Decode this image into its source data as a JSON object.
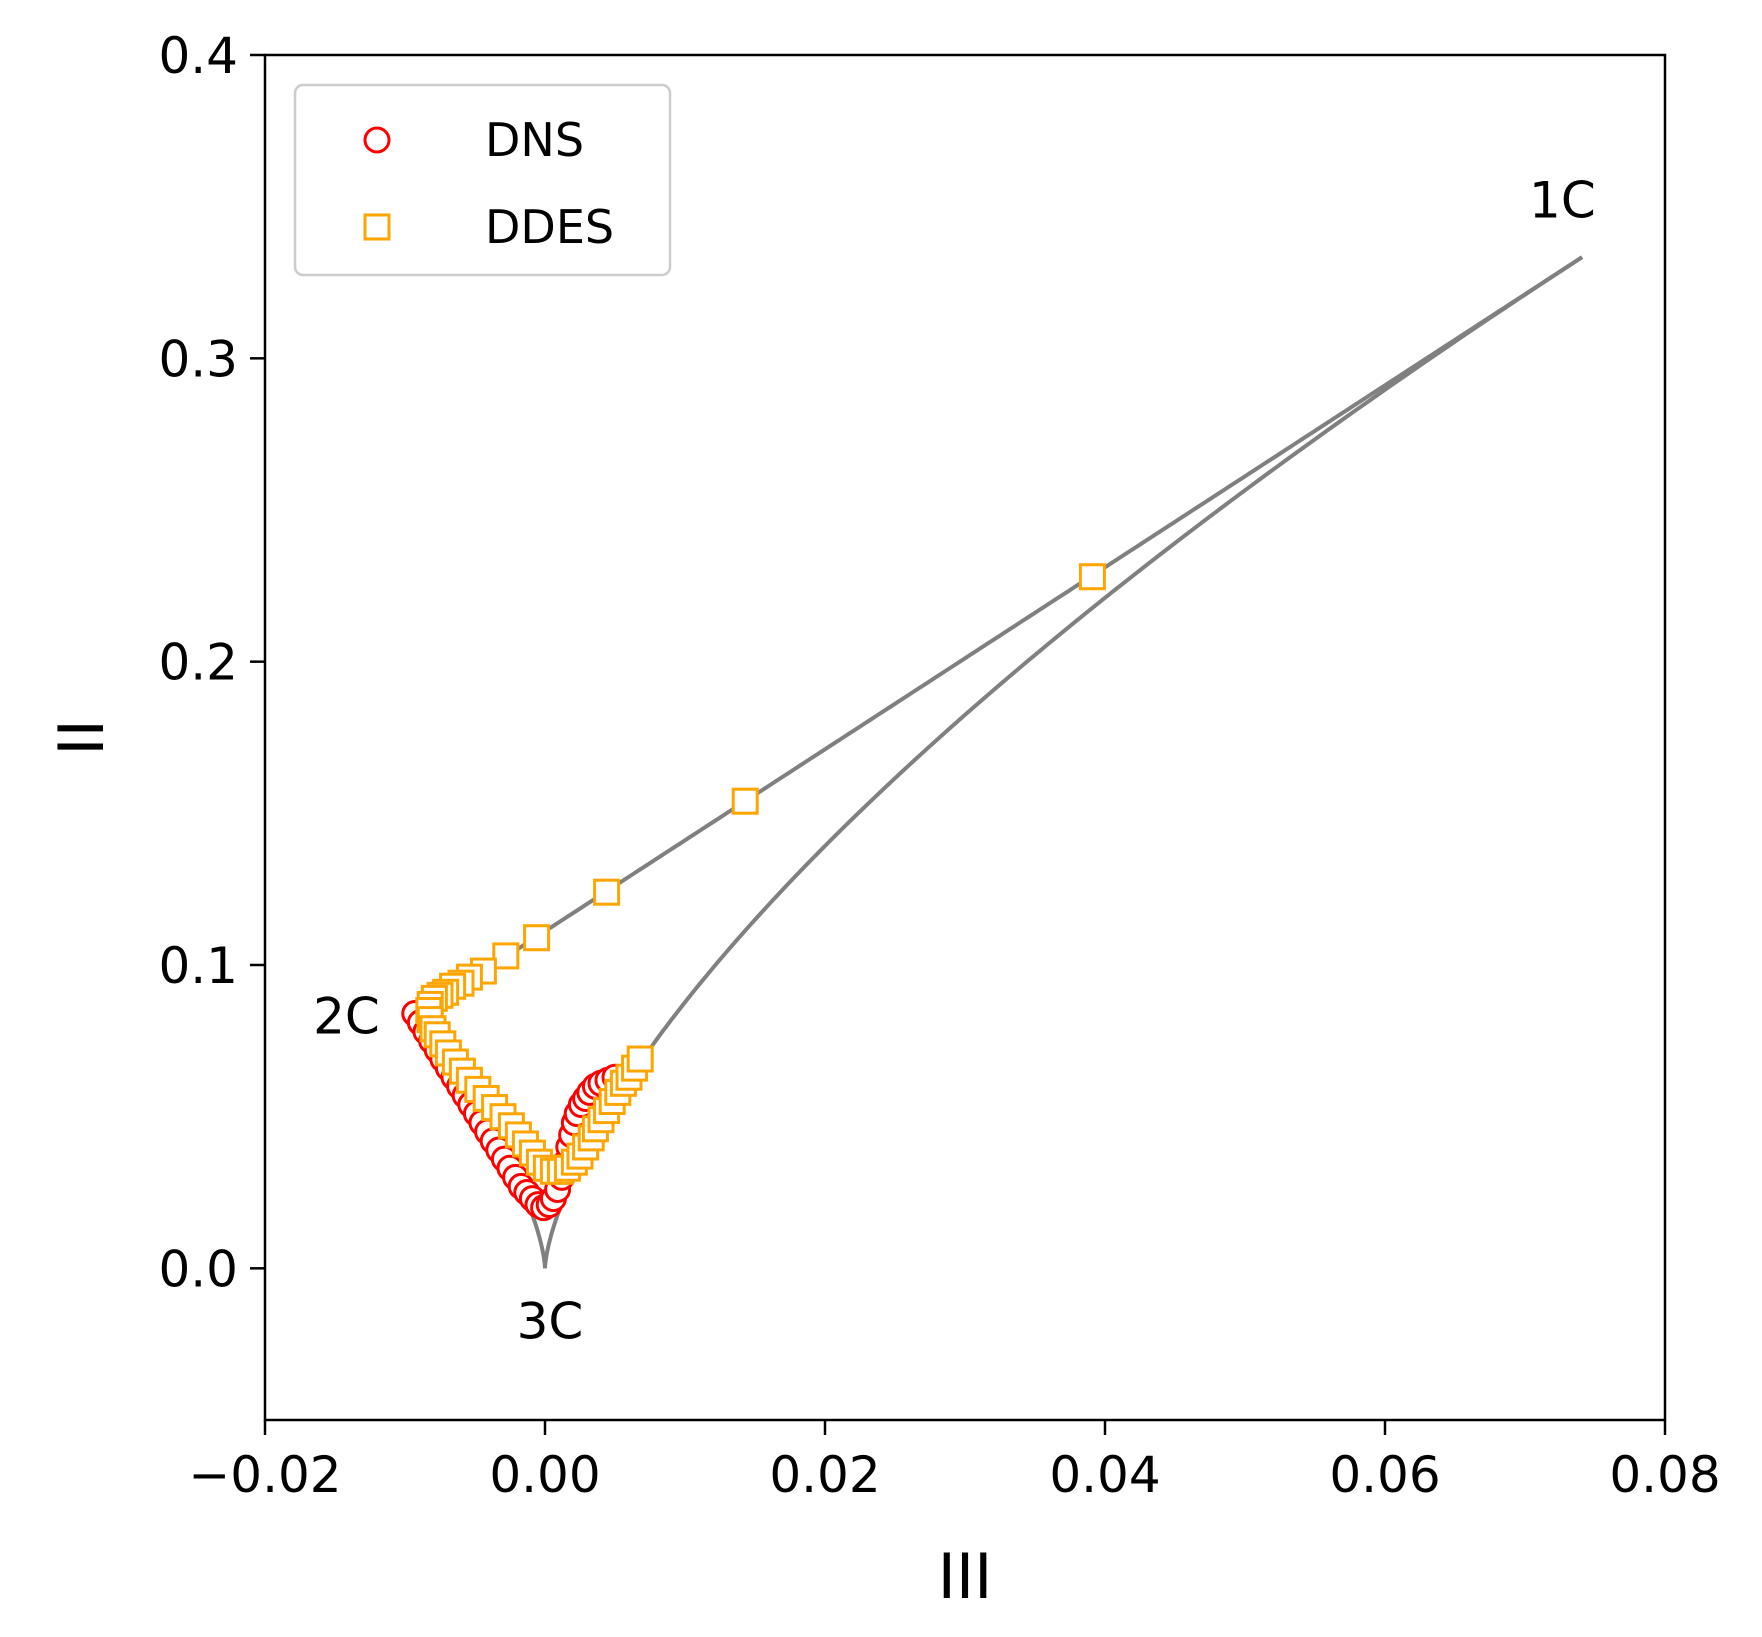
{
  "chart_data": {
    "type": "scatter",
    "title": "",
    "xlabel": "III",
    "ylabel": "II",
    "xlim": [
      -0.02,
      0.08
    ],
    "ylim": [
      -0.05,
      0.4
    ],
    "x_ticks": [
      -0.02,
      0.0,
      0.02,
      0.04,
      0.06,
      0.08
    ],
    "x_tick_labels": [
      "−0.02",
      "0.00",
      "0.02",
      "0.04",
      "0.06",
      "0.08"
    ],
    "y_ticks": [
      0.0,
      0.1,
      0.2,
      0.3,
      0.4
    ],
    "y_tick_labels": [
      "0.0",
      "0.1",
      "0.2",
      "0.3",
      "0.4"
    ],
    "grid": false,
    "legend": {
      "placement": "top-left"
    },
    "colors": {
      "DNS": "#ff0000",
      "DDES": "#ffa500",
      "boundary": "#808080"
    },
    "corner_labels": [
      {
        "text": "1C",
        "x": 0.0741,
        "y": 0.3333
      },
      {
        "text": "2C",
        "x": -0.0093,
        "y": 0.0833
      },
      {
        "text": "3C",
        "x": 0.0,
        "y": 0.0
      }
    ],
    "series": [
      {
        "name": "DNS",
        "marker": "circle",
        "points": [
          [
            -0.0093,
            0.084
          ],
          [
            -0.0089,
            0.081
          ],
          [
            -0.0085,
            0.078
          ],
          [
            -0.0081,
            0.075
          ],
          [
            -0.0077,
            0.072
          ],
          [
            -0.0073,
            0.069
          ],
          [
            -0.0069,
            0.066
          ],
          [
            -0.0065,
            0.063
          ],
          [
            -0.0061,
            0.06
          ],
          [
            -0.0057,
            0.057
          ],
          [
            -0.0053,
            0.054
          ],
          [
            -0.0049,
            0.051
          ],
          [
            -0.0045,
            0.048
          ],
          [
            -0.0041,
            0.045
          ],
          [
            -0.0037,
            0.042
          ],
          [
            -0.0033,
            0.039
          ],
          [
            -0.0029,
            0.036
          ],
          [
            -0.0025,
            0.033
          ],
          [
            -0.0021,
            0.03
          ],
          [
            -0.0017,
            0.027
          ],
          [
            -0.0013,
            0.025
          ],
          [
            -0.0009,
            0.023
          ],
          [
            -0.0005,
            0.021
          ],
          [
            -0.0001,
            0.02
          ],
          [
            0.0003,
            0.021
          ],
          [
            0.0006,
            0.023
          ],
          [
            0.0009,
            0.026
          ],
          [
            0.0012,
            0.03
          ],
          [
            0.0015,
            0.035
          ],
          [
            0.0017,
            0.04
          ],
          [
            0.0019,
            0.044
          ],
          [
            0.0021,
            0.048
          ],
          [
            0.0023,
            0.051
          ],
          [
            0.0026,
            0.054
          ],
          [
            0.0029,
            0.056
          ],
          [
            0.0032,
            0.058
          ],
          [
            0.0036,
            0.06
          ],
          [
            0.004,
            0.061
          ],
          [
            0.0045,
            0.062
          ],
          [
            0.005,
            0.063
          ]
        ]
      },
      {
        "name": "DDES",
        "marker": "square",
        "points": [
          [
            0.0391,
            0.228
          ],
          [
            0.0143,
            0.154
          ],
          [
            0.0044,
            0.124
          ],
          [
            -0.0006,
            0.109
          ],
          [
            -0.0028,
            0.103
          ],
          [
            -0.0044,
            0.098
          ],
          [
            -0.0054,
            0.096
          ],
          [
            -0.006,
            0.094
          ],
          [
            -0.0066,
            0.093
          ],
          [
            -0.0071,
            0.091
          ],
          [
            -0.0075,
            0.09
          ],
          [
            -0.0079,
            0.089
          ],
          [
            -0.0082,
            0.087
          ],
          [
            -0.0083,
            0.085
          ],
          [
            -0.0082,
            0.082
          ],
          [
            -0.008,
            0.079
          ],
          [
            -0.0077,
            0.077
          ],
          [
            -0.0073,
            0.074
          ],
          [
            -0.0069,
            0.071
          ],
          [
            -0.0064,
            0.068
          ],
          [
            -0.0059,
            0.065
          ],
          [
            -0.0054,
            0.062
          ],
          [
            -0.0048,
            0.059
          ],
          [
            -0.0042,
            0.056
          ],
          [
            -0.0036,
            0.053
          ],
          [
            -0.003,
            0.05
          ],
          [
            -0.0024,
            0.047
          ],
          [
            -0.0019,
            0.044
          ],
          [
            -0.0014,
            0.041
          ],
          [
            -0.0009,
            0.038
          ],
          [
            -0.0004,
            0.035
          ],
          [
            0.0001,
            0.033
          ],
          [
            0.0006,
            0.032
          ],
          [
            0.0011,
            0.032
          ],
          [
            0.0016,
            0.033
          ],
          [
            0.0021,
            0.035
          ],
          [
            0.0025,
            0.037
          ],
          [
            0.0029,
            0.04
          ],
          [
            0.0033,
            0.043
          ],
          [
            0.0036,
            0.046
          ],
          [
            0.004,
            0.049
          ],
          [
            0.0044,
            0.052
          ],
          [
            0.0048,
            0.055
          ],
          [
            0.0052,
            0.058
          ],
          [
            0.0056,
            0.061
          ],
          [
            0.006,
            0.063
          ],
          [
            0.0064,
            0.066
          ],
          [
            0.0068,
            0.069
          ]
        ]
      }
    ]
  }
}
